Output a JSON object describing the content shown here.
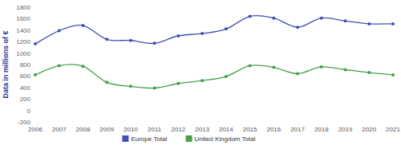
{
  "chart_data": {
    "type": "line",
    "y_label": "Data in millions of €",
    "categories": [
      "2006",
      "2007",
      "2008",
      "2009",
      "2010",
      "2011",
      "2012",
      "2013",
      "2014",
      "2015",
      "2016",
      "2017",
      "2018",
      "2019",
      "2020",
      "2021"
    ],
    "series": [
      {
        "name": "Europe Total",
        "color": "#3f51b5",
        "marker": "circle",
        "values": [
          1160,
          1390,
          1480,
          1240,
          1220,
          1170,
          1300,
          1340,
          1420,
          1640,
          1610,
          1450,
          1610,
          1560,
          1510,
          1510
        ]
      },
      {
        "name": "United Kingdom Total",
        "color": "#43a047",
        "marker": "circle",
        "values": [
          620,
          780,
          770,
          490,
          420,
          390,
          470,
          520,
          590,
          780,
          750,
          640,
          760,
          710,
          660,
          620
        ]
      }
    ],
    "ylim": [
      -200,
      1800
    ],
    "yticks": [
      -200,
      0,
      200,
      400,
      600,
      800,
      1000,
      1200,
      1400,
      1600,
      1800
    ],
    "grid": false,
    "legend": "bottom"
  }
}
